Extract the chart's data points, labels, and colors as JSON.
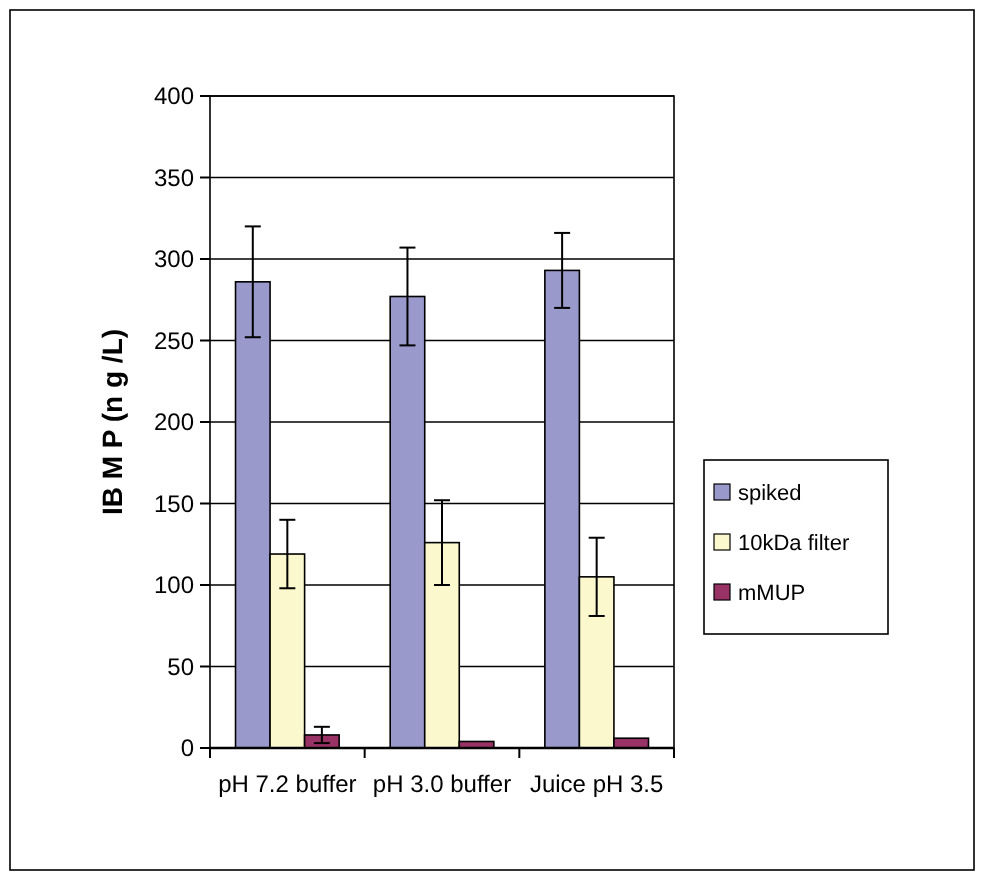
{
  "chart_data": {
    "type": "bar",
    "ylabel": "IB M P  (n g /L)",
    "categories": [
      "pH 7.2 buffer",
      "pH 3.0 buffer",
      "Juice pH 3.5"
    ],
    "series": [
      {
        "name": "spiked",
        "color": "#9999cc",
        "values": [
          286,
          277,
          293
        ],
        "errors": [
          34,
          30,
          23
        ]
      },
      {
        "name": "10kDa filter",
        "color": "#fbf8cd",
        "values": [
          119,
          126,
          105
        ],
        "errors": [
          21,
          26,
          24
        ]
      },
      {
        "name": "mMUP",
        "color": "#993366",
        "values": [
          8,
          4,
          6
        ],
        "errors": [
          5,
          null,
          null
        ]
      }
    ],
    "ylim": [
      0,
      400
    ],
    "yticks": [
      0,
      50,
      100,
      150,
      200,
      250,
      300,
      350,
      400
    ],
    "grid": "y",
    "legend": "right"
  }
}
